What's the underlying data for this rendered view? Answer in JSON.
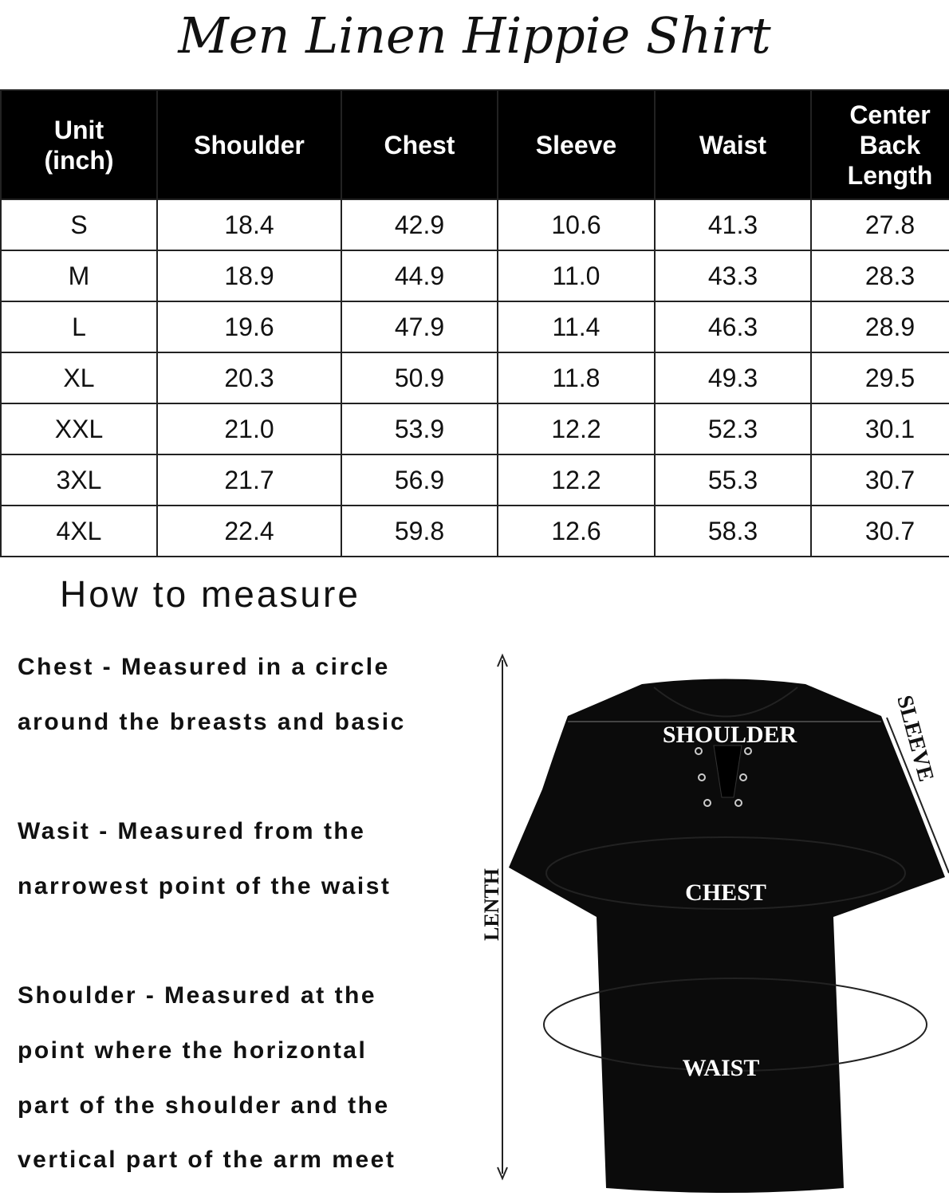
{
  "title": "Men Linen Hippie Shirt",
  "table": {
    "headers": [
      "Unit\n(inch)",
      "Shoulder",
      "Chest",
      "Sleeve",
      "Waist",
      "Center\nBack\nLength"
    ],
    "rows": [
      [
        "S",
        "18.4",
        "42.9",
        "10.6",
        "41.3",
        "27.8"
      ],
      [
        "M",
        "18.9",
        "44.9",
        "11.0",
        "43.3",
        "28.3"
      ],
      [
        "L",
        "19.6",
        "47.9",
        "11.4",
        "46.3",
        "28.9"
      ],
      [
        "XL",
        "20.3",
        "50.9",
        "11.8",
        "49.3",
        "29.5"
      ],
      [
        "XXL",
        "21.0",
        "53.9",
        "12.2",
        "52.3",
        "30.1"
      ],
      [
        "3XL",
        "21.7",
        "56.9",
        "12.2",
        "55.3",
        "30.7"
      ],
      [
        "4XL",
        "22.4",
        "59.8",
        "12.6",
        "58.3",
        "30.7"
      ]
    ]
  },
  "how_to_measure": "How to measure",
  "descriptions": [
    "Chest - Measured in a circle",
    "around the breasts and basic",
    "Wasit - Measured from the",
    "narrowest point of the waist",
    "Shoulder - Measured at the",
    "point where the horizontal",
    "part of the shoulder and the",
    "vertical part  of the  arm meet"
  ],
  "diagram": {
    "shoulder": "SHOULDER",
    "chest": "CHEST",
    "waist": "WAIST",
    "sleeve": "SLEEVE",
    "length": "LENTH",
    "shirt_color": "#0b0b0b"
  }
}
